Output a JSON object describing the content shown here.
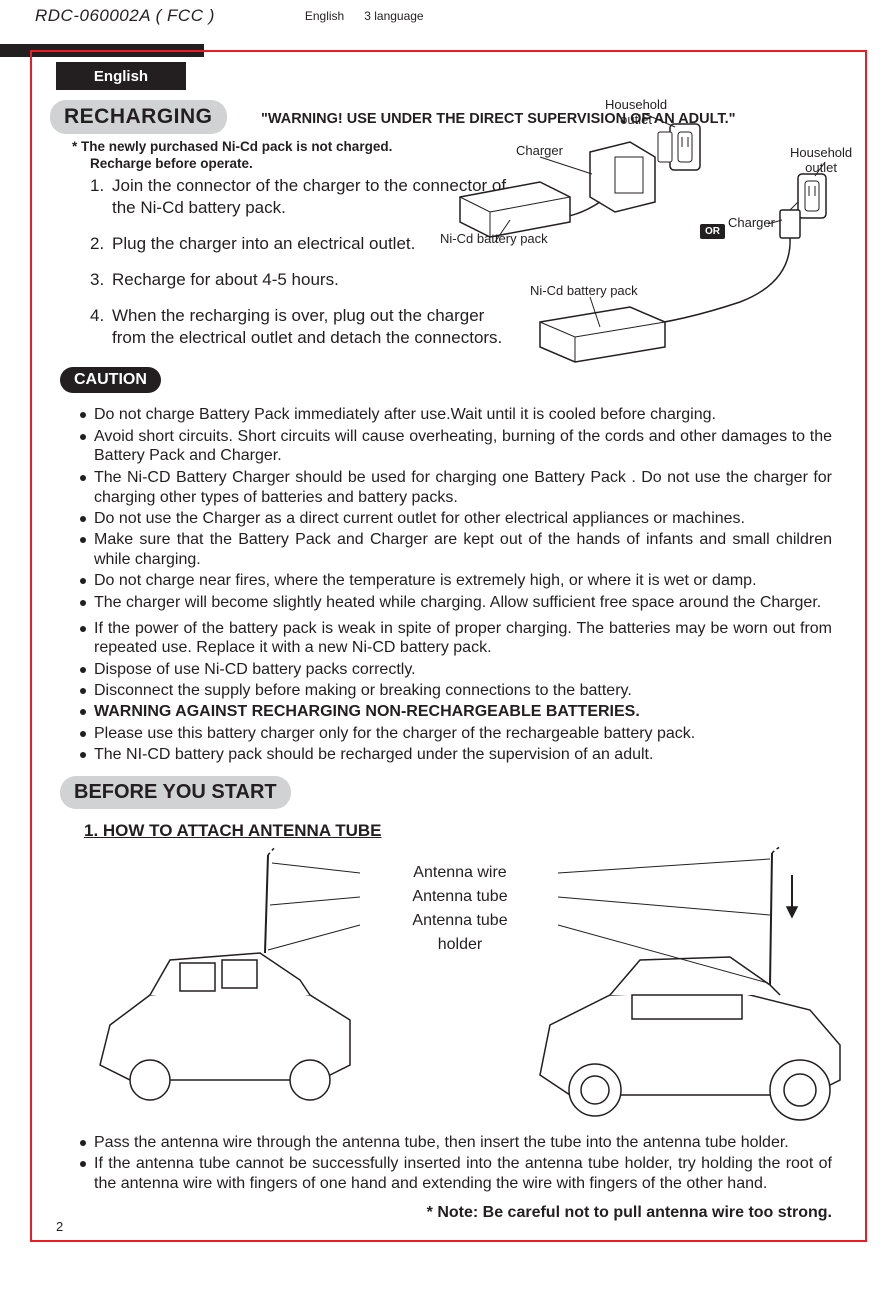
{
  "header": {
    "doc_code": "RDC-060002A ( FCC )",
    "lang1": "English",
    "lang2": "3 language"
  },
  "tab": "English",
  "recharging": {
    "title": "RECHARGING",
    "warning": "\"WARNING! USE UNDER THE DIRECT SUPERVISION OF AN ADULT.\"",
    "star1": "*   The newly purchased Ni-Cd pack is not charged.",
    "star2": "Recharge before operate.",
    "steps": [
      "Join the connector of the charger to the connector of the Ni-Cd battery pack.",
      "Plug the charger into an electrical outlet.",
      "Recharge for about 4-5 hours.",
      "When the recharging is over, plug out the charger from the electrical outlet and detach the connectors."
    ],
    "labels": {
      "household_outlet": "Household\noutlet",
      "charger": "Charger",
      "nicd_pack": "Ni-Cd battery pack",
      "or": "OR"
    }
  },
  "caution": {
    "title": "CAUTION",
    "items": [
      "Do not charge Battery Pack immediately after use.Wait until it is cooled before charging.",
      "Avoid short circuits. Short circuits will cause overheating, burning of the cords and other damages to the Battery Pack and Charger.",
      "The Ni-CD Battery Charger should be used for charging one Battery Pack . Do not use the charger for charging other types of batteries and battery packs.",
      "Do not use the Charger as a direct current outlet for other electrical appliances or machines.",
      "Make sure that the Battery Pack and Charger are kept out of the hands of infants and small children while charging.",
      "Do not charge near fires, where the temperature is extremely high, or where it is wet or damp.",
      "The charger will become slightly heated while charging. Allow sufficient free space around the Charger.",
      "If the power of the battery pack is weak in spite of proper charging. The batteries may be worn out from repeated use. Replace it with a new Ni-CD battery pack.",
      "Dispose of use Ni-CD battery packs correctly.",
      "Disconnect the supply before making or breaking connections to the battery.",
      "WARNING AGAINST RECHARGING NON-RECHARGEABLE BATTERIES.",
      "Please use this battery charger only for the charger of the  rechargeable battery pack.",
      "The NI-CD battery pack should be recharged under the supervision of an adult."
    ],
    "bold_index": 10
  },
  "before": {
    "title": "BEFORE YOU START",
    "subhead": "1. HOW TO ATTACH ANTENNA TUBE",
    "labels": {
      "wire": "Antenna wire",
      "tube": "Antenna tube",
      "holder": "Antenna tube\nholder"
    },
    "bullets": [
      "Pass the antenna wire through the antenna tube, then insert the tube into the antenna tube holder.",
      "If the antenna tube cannot be successfully inserted into the antenna tube holder, try holding the root of the antenna wire with fingers of one hand and extending the wire with fingers of the other hand."
    ],
    "note": "* Note: Be careful not to pull antenna wire too strong."
  },
  "page": "2",
  "colors": {
    "frame": "#ec1c24",
    "pill_bg": "#d0d2d3",
    "ink": "#231f20"
  }
}
